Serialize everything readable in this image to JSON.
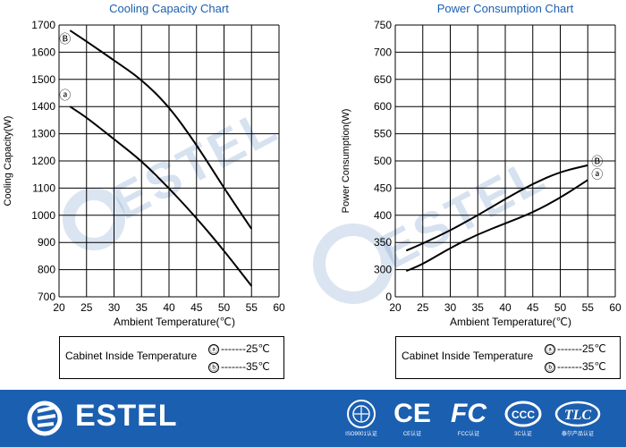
{
  "chart_data": [
    {
      "type": "line",
      "title": "Cooling Capacity Chart",
      "xlabel": "Ambient Temperature(℃)",
      "ylabel": "Cooling  Capacity(W)",
      "xlim": [
        20,
        60
      ],
      "ylim": [
        700,
        1700
      ],
      "x_ticks": [
        "20",
        "25",
        "30",
        "35",
        "40",
        "45",
        "50",
        "55",
        "60"
      ],
      "y_ticks": [
        "700",
        "800",
        "900",
        "1000",
        "1100",
        "1200",
        "1300",
        "1400",
        "1500",
        "1600",
        "1700"
      ],
      "grid": true,
      "series": [
        {
          "name": "b",
          "x": [
            22,
            25,
            30,
            35,
            40,
            45,
            50,
            55
          ],
          "y": [
            1680,
            1640,
            1570,
            1500,
            1400,
            1260,
            1100,
            950
          ]
        },
        {
          "name": "a",
          "x": [
            22,
            25,
            30,
            35,
            40,
            45,
            50,
            55
          ],
          "y": [
            1400,
            1360,
            1280,
            1200,
            1100,
            990,
            870,
            740
          ]
        }
      ],
      "series_labels": [
        "Ⓑ",
        "ⓐ"
      ],
      "legend": {
        "title": "Cabinet Inside Temperature",
        "entries": [
          {
            "marker": "ⓐ",
            "text": "-------25℃"
          },
          {
            "marker": "ⓑ",
            "text": "-------35℃"
          }
        ]
      }
    },
    {
      "type": "line",
      "title": "Power Consumption Chart",
      "xlabel": "Ambient Temperature(℃)",
      "ylabel": "Power Consumption(W)",
      "xlim": [
        20,
        60
      ],
      "ylim": [
        0,
        750
      ],
      "y_axis_note": "axis breaks between 0 and 300; ticks 300-750 are evenly spaced",
      "x_ticks": [
        "20",
        "25",
        "30",
        "35",
        "40",
        "45",
        "50",
        "55",
        "60"
      ],
      "y_ticks": [
        "0",
        "300",
        "350",
        "400",
        "450",
        "500",
        "550",
        "600",
        "650",
        "700",
        "750"
      ],
      "grid": true,
      "series": [
        {
          "name": "b",
          "x": [
            22,
            25,
            30,
            35,
            40,
            45,
            50,
            55
          ],
          "y": [
            335,
            348,
            372,
            400,
            430,
            458,
            480,
            492
          ]
        },
        {
          "name": "a",
          "x": [
            22,
            25,
            30,
            35,
            40,
            45,
            50,
            55
          ],
          "y": [
            285,
            310,
            340,
            365,
            385,
            405,
            432,
            465
          ]
        }
      ],
      "series_labels": [
        "Ⓑ",
        "ⓐ"
      ],
      "legend": {
        "title": "Cabinet Inside Temperature",
        "entries": [
          {
            "marker": "ⓐ",
            "text": "-------25℃"
          },
          {
            "marker": "ⓑ",
            "text": "-------35℃"
          }
        ]
      }
    }
  ],
  "watermark": {
    "text": "ESTEL",
    "color": "#6e96c8"
  },
  "footer": {
    "background": "#1b5fb0",
    "brand": "ESTEL",
    "certs": [
      {
        "icon": "iso-icon",
        "caption": "ISO9001认证"
      },
      {
        "icon": "ce-icon",
        "caption": "CE认证",
        "symbol": "CE"
      },
      {
        "icon": "fcc-icon",
        "caption": "FCC认证",
        "symbol": "FC"
      },
      {
        "icon": "ccc-icon",
        "caption": "3C认证",
        "symbol": "CCC"
      },
      {
        "icon": "tlc-icon",
        "caption": "泰尔产品认证",
        "symbol": "TLC"
      }
    ]
  }
}
